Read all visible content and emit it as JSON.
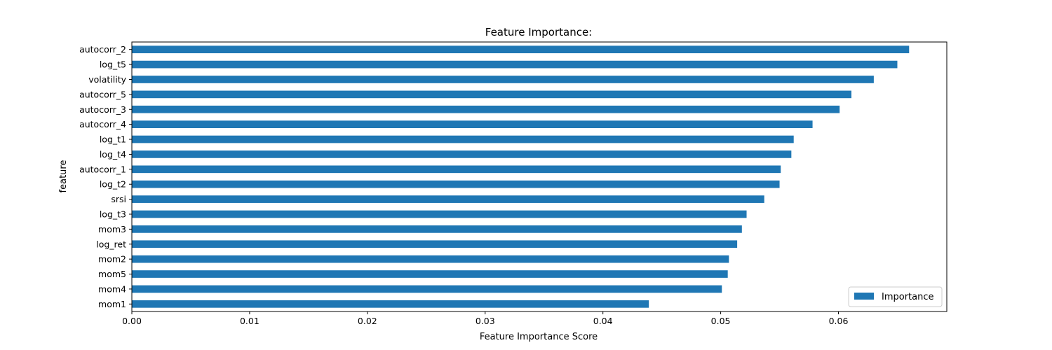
{
  "chart_data": {
    "type": "bar",
    "orientation": "horizontal",
    "title": "Feature Importance:",
    "xlabel": "Feature Importance Score",
    "ylabel": "feature",
    "xlim": [
      0,
      0.0692
    ],
    "xticks": [
      0.0,
      0.01,
      0.02,
      0.03,
      0.04,
      0.05,
      0.06
    ],
    "xtick_labels": [
      "0.00",
      "0.01",
      "0.02",
      "0.03",
      "0.04",
      "0.05",
      "0.06"
    ],
    "categories": [
      "autocorr_2",
      "log_t5",
      "volatility",
      "autocorr_5",
      "autocorr_3",
      "autocorr_4",
      "log_t1",
      "log_t4",
      "autocorr_1",
      "log_t2",
      "srsi",
      "log_t3",
      "mom3",
      "log_ret",
      "mom2",
      "mom5",
      "mom4",
      "mom1"
    ],
    "series": [
      {
        "name": "Importance",
        "color": "#1f77b4",
        "values": [
          0.066,
          0.065,
          0.063,
          0.0611,
          0.0601,
          0.0578,
          0.0562,
          0.056,
          0.0551,
          0.055,
          0.0537,
          0.0522,
          0.0518,
          0.0514,
          0.0507,
          0.0506,
          0.0501,
          0.0439
        ]
      }
    ],
    "legend": {
      "position": "bottom-right",
      "labels": [
        "Importance"
      ]
    },
    "grid": false
  }
}
